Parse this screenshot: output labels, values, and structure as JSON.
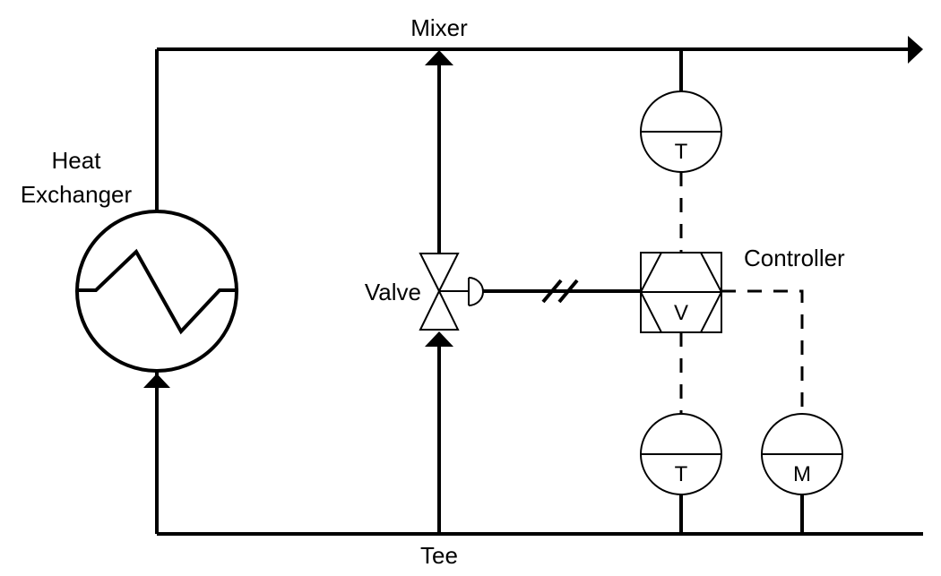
{
  "labels": {
    "mixer": "Mixer",
    "tee": "Tee",
    "heat_exchanger_line1": "Heat",
    "heat_exchanger_line2": "Exchanger",
    "valve": "Valve",
    "controller": "Controller"
  },
  "instruments": {
    "top_temperature": "T",
    "bottom_temperature": "T",
    "flow_meter": "M",
    "controller_tag": "V"
  },
  "colors": {
    "line": "#000000",
    "background": "#ffffff"
  }
}
